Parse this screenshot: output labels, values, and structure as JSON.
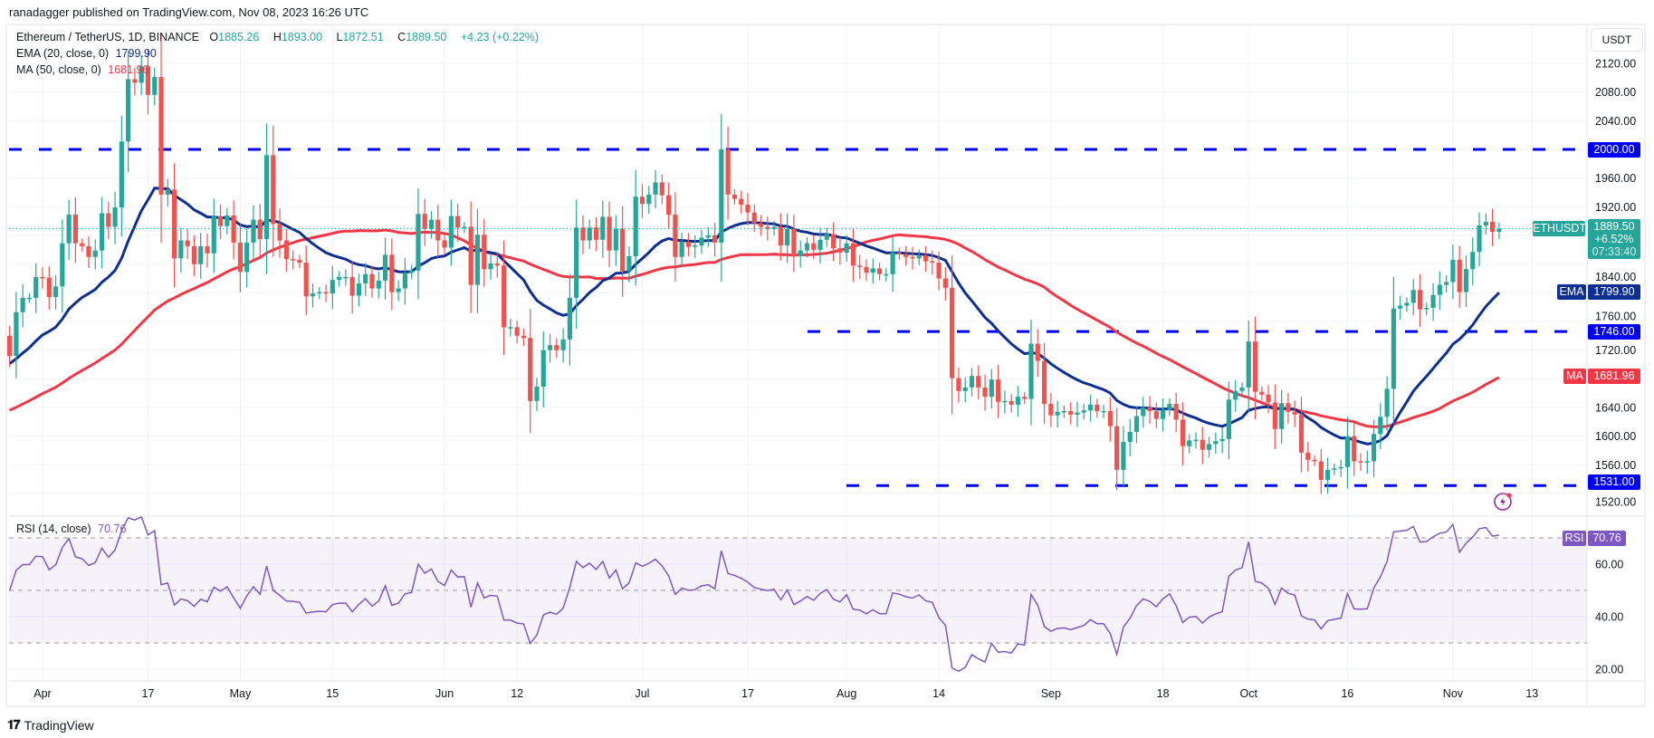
{
  "author_line": "ranadagger published on TradingView.com, Nov 08, 2023 16:26 UTC",
  "legend": {
    "symbol": "Ethereum / TetherUS, 1D, BINANCE",
    "o_label": "O",
    "o": "1885.26",
    "h_label": "H",
    "h": "1893.00",
    "l_label": "L",
    "l": "1872.51",
    "c_label": "C",
    "c": "1889.50",
    "change": "+4.23 (+0.22%)",
    "ema_label": "EMA (20, close, 0)",
    "ema_value": "1799.90",
    "ma_label": "MA (50, close, 0)",
    "ma_value": "1681.96",
    "rsi_label": "RSI (14, close)",
    "rsi_value": "70.76"
  },
  "axis": {
    "currency": "USDT",
    "price_ticks": [
      "2120.00",
      "2080.00",
      "2040.00",
      "1960.00",
      "1920.00",
      "1840.00",
      "1760.00",
      "1720.00",
      "1640.00",
      "1600.00",
      "1560.00",
      "1520.00"
    ],
    "rsi_ticks": [
      "60.00",
      "40.00",
      "20.00"
    ],
    "time_ticks": [
      "Apr",
      "17",
      "May",
      "15",
      "Jun",
      "12",
      "Jul",
      "17",
      "Aug",
      "14",
      "Sep",
      "18",
      "Oct",
      "16",
      "Nov",
      "13"
    ]
  },
  "tags": {
    "symbol": "ETHUSDT",
    "price": "1889.50",
    "pct": "+6.52%",
    "countdown": "07:33:40",
    "ema": "EMA",
    "ema_value": "1799.90",
    "ma": "MA",
    "ma_value": "1681.96",
    "level_2000": "2000.00",
    "level_1746": "1746.00",
    "level_1531": "1531.00",
    "rsi": "RSI",
    "rsi_value": "70.76"
  },
  "colors": {
    "up": "#26a69a",
    "down": "#ef5350",
    "ema": "#0d2f91",
    "ma": "#f23645",
    "level": "#0000ff",
    "rsi": "#7e57c2"
  },
  "brand": "TradingView",
  "chart_data": {
    "type": "candlestick",
    "title": "Ethereum / TetherUS, 1D, BINANCE",
    "x_start": "2023-03-27",
    "x_end": "2023-11-08",
    "ylim": [
      1500,
      2150
    ],
    "closes": [
      1712,
      1773,
      1793,
      1793,
      1822,
      1821,
      1794,
      1809,
      1869,
      1909,
      1869,
      1865,
      1850,
      1859,
      1911,
      1892,
      1919,
      2011,
      2098,
      2093,
      2116,
      2076,
      2101,
      1937,
      1944,
      1848,
      1873,
      1865,
      1840,
      1865,
      1855,
      1907,
      1893,
      1908,
      1870,
      1829,
      1870,
      1902,
      1875,
      1992,
      1896,
      1873,
      1847,
      1846,
      1842,
      1795,
      1799,
      1801,
      1799,
      1818,
      1822,
      1822,
      1796,
      1813,
      1826,
      1806,
      1817,
      1853,
      1801,
      1806,
      1828,
      1831,
      1910,
      1889,
      1902,
      1873,
      1863,
      1907,
      1891,
      1892,
      1811,
      1881,
      1833,
      1841,
      1838,
      1752,
      1752,
      1740,
      1737,
      1649,
      1669,
      1720,
      1727,
      1720,
      1735,
      1793,
      1891,
      1873,
      1891,
      1874,
      1906,
      1859,
      1889,
      1830,
      1851,
      1934,
      1924,
      1937,
      1954,
      1936,
      1909,
      1850,
      1871,
      1864,
      1866,
      1877,
      1880,
      1870,
      2000,
      1937,
      1931,
      1923,
      1912,
      1897,
      1892,
      1889,
      1892,
      1866,
      1889,
      1851,
      1859,
      1869,
      1860,
      1874,
      1882,
      1862,
      1856,
      1869,
      1838,
      1836,
      1828,
      1834,
      1826,
      1826,
      1856,
      1854,
      1850,
      1848,
      1852,
      1844,
      1842,
      1820,
      1807,
      1681,
      1663,
      1668,
      1684,
      1668,
      1655,
      1679,
      1648,
      1649,
      1644,
      1655,
      1652,
      1729,
      1705,
      1645,
      1629,
      1634,
      1635,
      1630,
      1633,
      1636,
      1644,
      1635,
      1635,
      1614,
      1553,
      1592,
      1606,
      1628,
      1640,
      1635,
      1624,
      1637,
      1645,
      1623,
      1586,
      1594,
      1595,
      1581,
      1589,
      1593,
      1596,
      1651,
      1663,
      1668,
      1732,
      1662,
      1658,
      1647,
      1610,
      1646,
      1634,
      1630,
      1577,
      1567,
      1565,
      1539,
      1553,
      1555,
      1557,
      1600,
      1565,
      1564,
      1565,
      1603,
      1627,
      1666,
      1778,
      1782,
      1786,
      1804,
      1777,
      1779,
      1797,
      1811,
      1815,
      1846,
      1801,
      1833,
      1857,
      1894,
      1899,
      1885,
      1889.5
    ],
    "horizontal_levels": [
      2000,
      1746,
      1531
    ],
    "indicators": {
      "ema20_last": 1799.9,
      "ma50_last": 1681.96,
      "rsi14_last": 70.76,
      "rsi_bands": [
        70,
        50,
        30
      ]
    }
  }
}
